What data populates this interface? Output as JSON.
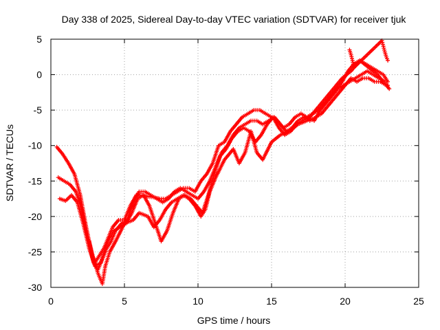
{
  "chart_data": {
    "type": "scatter",
    "title": "Day 338 of 2025, Sidereal Day-to-day VTEC variation (SDTVAR) for receiver tjuk",
    "xlabel": "GPS time / hours",
    "ylabel": "SDTVAR / TECUs",
    "xlim": [
      0,
      25
    ],
    "ylim": [
      -30,
      5
    ],
    "xticks": [
      0,
      5,
      10,
      15,
      20,
      25
    ],
    "yticks": [
      -30,
      -25,
      -20,
      -15,
      -10,
      -5,
      0,
      5
    ],
    "grid": true,
    "marker": "plus",
    "color": "#ff0000",
    "series": [
      {
        "x": [
          0.4,
          0.8,
          1.2,
          1.6,
          2.0,
          2.4,
          2.8,
          3.0,
          3.3,
          3.6,
          3.9,
          4.2,
          4.6,
          5.0,
          5.4,
          5.8,
          6.2,
          6.6,
          7.0,
          7.4,
          7.8,
          8.2,
          8.6,
          9.0,
          9.4,
          9.8,
          10.2,
          10.6,
          11.0,
          11.4,
          11.8,
          12.2,
          12.6,
          13.0,
          13.4,
          13.8,
          14.2,
          14.6,
          15.0,
          15.4,
          15.8,
          16.2,
          16.6,
          17.0,
          17.4,
          17.8,
          18.2,
          18.6,
          19.0,
          19.4,
          19.8,
          20.2,
          20.6,
          21.0,
          21.4,
          21.8,
          22.2,
          22.6,
          22.9
        ],
        "y": [
          -10.2,
          -11.2,
          -12.5,
          -14.0,
          -17.0,
          -21.5,
          -25.5,
          -26.5,
          -25.5,
          -24.5,
          -23.0,
          -21.5,
          -20.5,
          -20.5,
          -18.5,
          -17.0,
          -17.0,
          -17.2,
          -17.3,
          -17.5,
          -17.5,
          -17.0,
          -16.5,
          -16.0,
          -16.0,
          -16.5,
          -15.0,
          -14.0,
          -12.5,
          -10.0,
          -9.5,
          -8.0,
          -7.0,
          -6.0,
          -5.5,
          -5.0,
          -5.0,
          -5.5,
          -6.0,
          -6.5,
          -7.5,
          -7.0,
          -6.0,
          -5.5,
          -6.0,
          -5.5,
          -5.0,
          -4.0,
          -3.0,
          -2.0,
          -1.0,
          0.5,
          1.5,
          2.0,
          1.5,
          1.0,
          0.5,
          0.0,
          -1.0
        ]
      },
      {
        "x": [
          0.5,
          0.9,
          1.3,
          1.7,
          2.1,
          2.5,
          2.9,
          3.2,
          3.5,
          3.8,
          4.1,
          4.4,
          4.8,
          5.2,
          5.6,
          6.0,
          6.4,
          6.8,
          7.2,
          7.6,
          8.0,
          8.4,
          8.8,
          9.2,
          9.6,
          10.0,
          10.4,
          10.8,
          11.2,
          11.6,
          12.0,
          12.4,
          12.8,
          13.2,
          13.6,
          14.0,
          14.4,
          14.8,
          15.2,
          15.6,
          16.0,
          16.4,
          16.8,
          17.2,
          17.6,
          18.0,
          18.4,
          18.8,
          19.2,
          19.6,
          20.0,
          20.4,
          20.8,
          21.2,
          21.6,
          22.0,
          22.4,
          22.8,
          23.0
        ],
        "y": [
          -14.5,
          -15.0,
          -15.5,
          -16.5,
          -19.0,
          -23.0,
          -26.5,
          -27.5,
          -26.0,
          -24.5,
          -23.5,
          -22.0,
          -21.0,
          -20.5,
          -18.0,
          -16.5,
          -16.5,
          -17.0,
          -17.5,
          -18.0,
          -17.5,
          -16.5,
          -16.0,
          -16.5,
          -17.0,
          -17.5,
          -16.5,
          -15.0,
          -13.0,
          -11.0,
          -10.0,
          -8.5,
          -7.5,
          -7.0,
          -6.5,
          -6.5,
          -7.0,
          -6.5,
          -6.0,
          -7.0,
          -8.0,
          -7.5,
          -6.5,
          -6.0,
          -6.5,
          -6.0,
          -5.5,
          -4.5,
          -3.5,
          -2.5,
          -1.5,
          -0.5,
          -1.0,
          -0.5,
          -0.5,
          -1.0,
          -1.0,
          -1.5,
          -2.0
        ]
      },
      {
        "x": [
          0.6,
          1.0,
          1.4,
          1.8,
          2.2,
          2.6,
          3.0,
          3.4,
          3.7,
          4.0,
          4.3,
          4.7,
          5.1,
          5.5,
          5.9,
          6.3,
          6.7,
          7.1,
          7.5,
          7.9,
          8.3,
          8.7,
          9.1,
          9.5,
          9.9,
          10.3,
          10.7,
          11.1,
          11.5,
          11.9,
          12.3,
          12.7,
          13.1,
          13.5,
          13.9,
          14.3,
          14.7,
          15.1,
          15.5,
          15.9,
          16.3,
          16.7,
          17.1,
          17.5,
          17.9,
          18.3,
          18.7,
          19.1,
          19.5,
          19.9,
          20.3,
          20.7,
          21.1,
          21.5,
          21.9,
          22.3,
          22.7
        ],
        "y": [
          -17.5,
          -17.8,
          -17.0,
          -18.0,
          -21.0,
          -24.5,
          -27.0,
          -26.5,
          -24.5,
          -23.0,
          -22.0,
          -21.5,
          -21.0,
          -19.5,
          -17.5,
          -17.0,
          -18.5,
          -21.0,
          -23.5,
          -22.0,
          -19.5,
          -17.5,
          -17.0,
          -17.5,
          -18.5,
          -19.5,
          -17.0,
          -14.0,
          -11.5,
          -10.5,
          -9.0,
          -8.0,
          -7.5,
          -8.0,
          -9.5,
          -8.5,
          -7.0,
          -6.0,
          -7.5,
          -8.5,
          -8.0,
          -7.0,
          -6.5,
          -6.0,
          -6.5,
          -5.0,
          -4.0,
          -3.0,
          -2.0,
          -1.5,
          -1.0,
          -0.5,
          0.0,
          0.5,
          0.0,
          -0.5,
          -1.0
        ]
      },
      {
        "x": [
          2.6,
          2.9,
          3.2,
          3.5,
          3.7,
          4.0,
          4.4,
          5.0,
          5.6,
          6.0,
          6.6,
          7.0,
          7.4,
          7.8,
          8.2,
          8.6,
          9.0,
          9.4,
          9.8,
          10.2,
          10.5,
          10.8,
          11.2,
          11.8,
          12.4,
          12.8,
          13.2,
          13.6,
          14.0,
          14.4,
          15.0,
          15.6,
          16.2,
          16.8,
          17.4,
          18.0,
          18.6,
          19.2,
          19.8,
          20.4,
          21.0,
          21.6,
          22.2,
          22.6,
          22.9
        ],
        "y": [
          -23.5,
          -26.0,
          -28.0,
          -29.5,
          -27.0,
          -25.0,
          -23.5,
          -21.0,
          -20.5,
          -19.5,
          -20.0,
          -21.5,
          -20.5,
          -19.0,
          -18.0,
          -17.5,
          -17.0,
          -17.5,
          -18.5,
          -20.0,
          -19.0,
          -16.5,
          -14.5,
          -12.0,
          -10.5,
          -12.5,
          -11.0,
          -8.0,
          -11.0,
          -12.0,
          -9.5,
          -8.5,
          -8.0,
          -7.0,
          -6.5,
          -5.0,
          -3.5,
          -2.0,
          -0.5,
          0.5,
          2.0,
          1.0,
          0.0,
          -1.0,
          -1.5
        ]
      },
      {
        "x": [
          20.3,
          20.4,
          20.5,
          20.6,
          22.5,
          22.6,
          22.7,
          22.8,
          22.9
        ],
        "y": [
          3.5,
          2.8,
          2.0,
          1.0,
          4.8,
          4.0,
          3.2,
          2.5,
          2.0
        ]
      }
    ]
  }
}
